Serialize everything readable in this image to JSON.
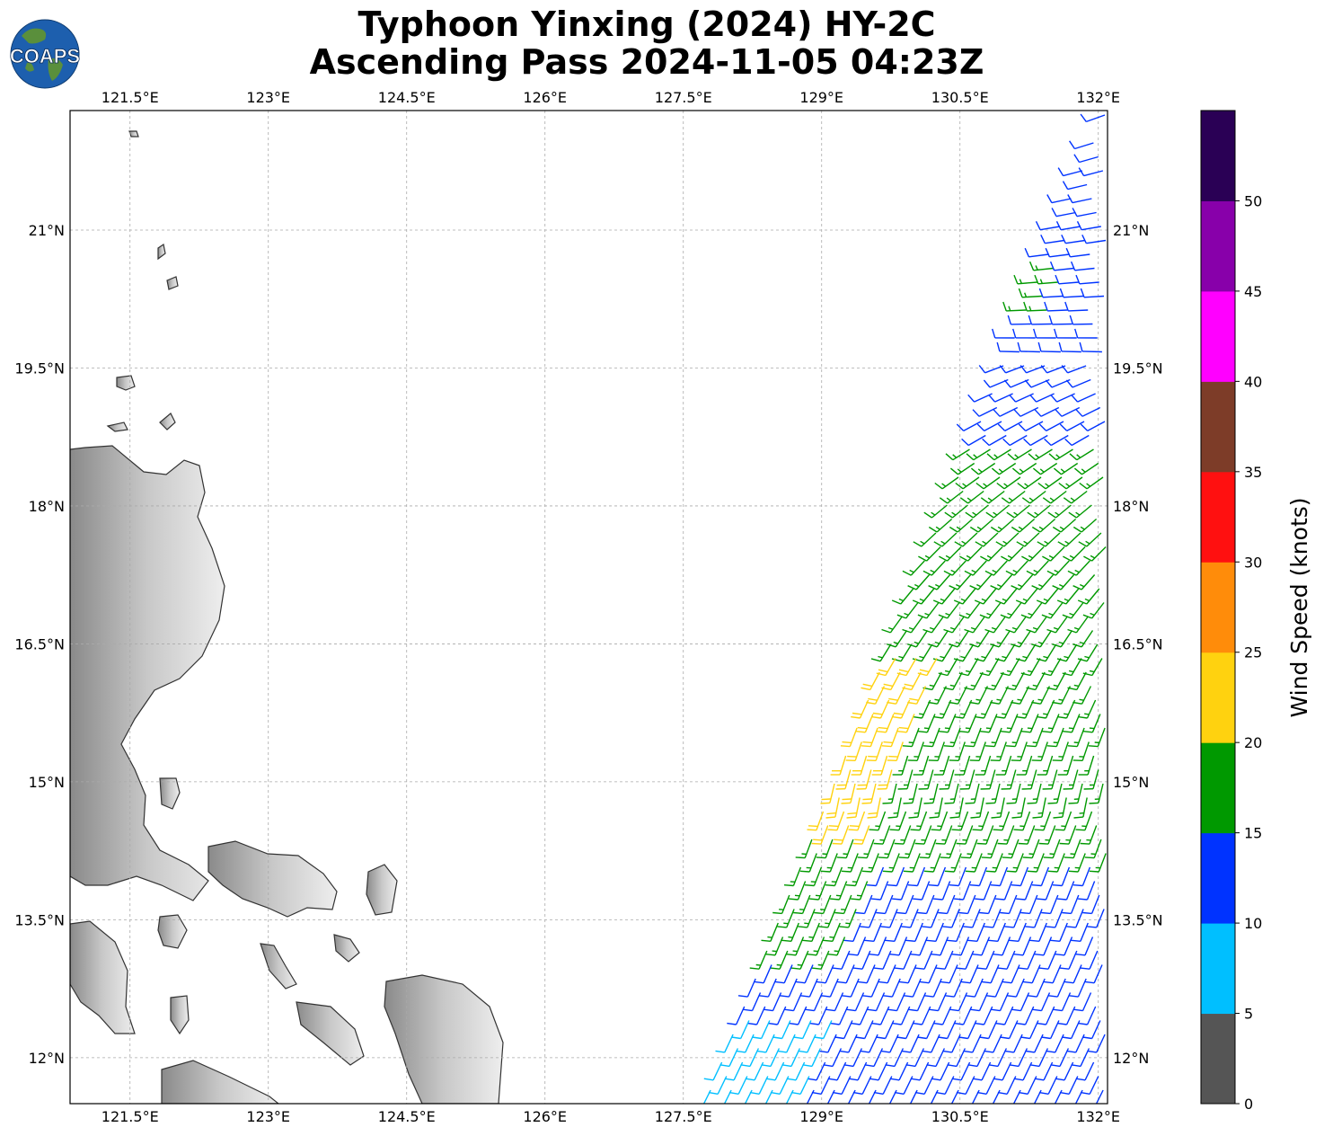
{
  "title": {
    "line1": "Typhoon Yinxing (2024) HY-2C",
    "line2": "Ascending Pass 2024-11-05 04:23Z"
  },
  "logo": {
    "text": "COAPS",
    "ocean_color": "#1d5fae",
    "land_color": "#5a8f3c"
  },
  "map": {
    "lon_range": [
      120.85,
      132.1
    ],
    "lat_range": [
      11.5,
      22.3
    ],
    "lon_ticks": [
      "121.5°E",
      "123°E",
      "124.5°E",
      "126°E",
      "127.5°E",
      "129°E",
      "130.5°E",
      "132°E"
    ],
    "lat_ticks": [
      "21°N",
      "19.5°N",
      "18°N",
      "16.5°N",
      "15°N",
      "13.5°N",
      "12°N"
    ],
    "gridlines": true,
    "coast_color": "#333333"
  },
  "colorbar": {
    "label": "Wind Speed (knots)",
    "tick_labels": [
      "0",
      "5",
      "10",
      "15",
      "20",
      "25",
      "30",
      "35",
      "40",
      "45",
      "50"
    ],
    "colors": [
      "#555555",
      "#00bfff",
      "#0033ff",
      "#009900",
      "#ffd20f",
      "#ff8c0a",
      "#ff1010",
      "#7d3c28",
      "#ff00ff",
      "#8800aa",
      "#2a0055"
    ]
  },
  "chart_data": {
    "type": "wind_barbs",
    "units": "knots",
    "legend_placement": "right"
  }
}
